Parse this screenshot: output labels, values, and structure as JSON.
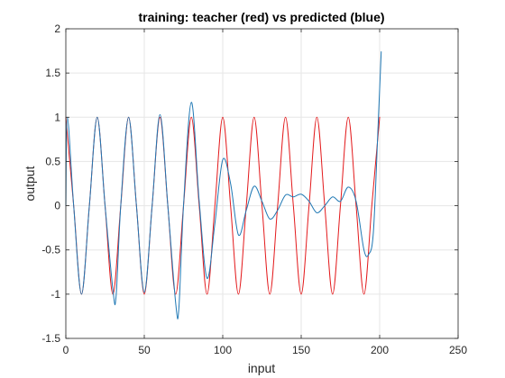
{
  "chart_data": {
    "type": "line",
    "title": "training: teacher (red) vs predicted (blue)",
    "xlabel": "input",
    "ylabel": "output",
    "xlim": [
      0,
      250
    ],
    "ylim": [
      -1.5,
      2
    ],
    "xticks": [
      0,
      50,
      100,
      150,
      200,
      250
    ],
    "yticks": [
      -1.5,
      -1,
      -0.5,
      0,
      0.5,
      1,
      1.5,
      2
    ],
    "xtick_labels": [
      "0",
      "50",
      "100",
      "150",
      "200",
      "250"
    ],
    "ytick_labels": [
      "-1.5",
      "-1",
      "-0.5",
      "0",
      "0.5",
      "1",
      "1.5",
      "2"
    ],
    "grid": true,
    "colors": {
      "teacher": "#e31a1c",
      "predicted": "#1f78b4",
      "axis": "#262626",
      "grid": "#e6e6e6"
    },
    "series": [
      {
        "color": "#e31a1c",
        "x": [
          0,
          5,
          10,
          15,
          20,
          25,
          30,
          35,
          40,
          45,
          50,
          55,
          60,
          65,
          70,
          75,
          80,
          85,
          90,
          95,
          100,
          105,
          110,
          115,
          120,
          125,
          130,
          135,
          140,
          145,
          150,
          155,
          160,
          165,
          170,
          175,
          180,
          185,
          190,
          195,
          200
        ],
        "y": [
          1,
          0,
          -1,
          0,
          1,
          0,
          -1,
          0,
          1,
          0,
          -1,
          0,
          1,
          0,
          -1,
          0,
          1,
          0,
          -1,
          0,
          1,
          0,
          -1,
          0,
          1,
          0,
          -1,
          0,
          1,
          0,
          -1,
          0,
          1,
          0,
          -1,
          0,
          1,
          0,
          -1,
          0,
          1
        ]
      },
      {
        "color": "#1f78b4",
        "x": [
          0,
          1,
          5,
          10,
          15,
          20,
          25,
          30,
          32,
          35,
          40,
          45,
          50,
          55,
          60,
          65,
          70,
          72,
          75,
          80,
          85,
          90,
          95,
          100,
          105,
          110,
          115,
          120,
          125,
          130,
          135,
          140,
          145,
          150,
          155,
          160,
          165,
          170,
          175,
          180,
          185,
          190,
          193,
          196,
          199,
          201
        ],
        "y": [
          0,
          1,
          0,
          -1,
          0,
          1,
          0,
          -0.95,
          -1.03,
          0,
          1,
          0,
          -0.98,
          0,
          1.03,
          0,
          -1.1,
          -1.17,
          0,
          1.17,
          0.05,
          -0.82,
          -0.2,
          0.52,
          0.25,
          -0.33,
          -0.05,
          0.22,
          0.05,
          -0.15,
          -0.05,
          0.12,
          0.1,
          0.13,
          0.05,
          -0.08,
          0,
          0.1,
          0.05,
          0.21,
          0.05,
          -0.5,
          -0.55,
          -0.3,
          0.9,
          1.74
        ]
      }
    ]
  }
}
